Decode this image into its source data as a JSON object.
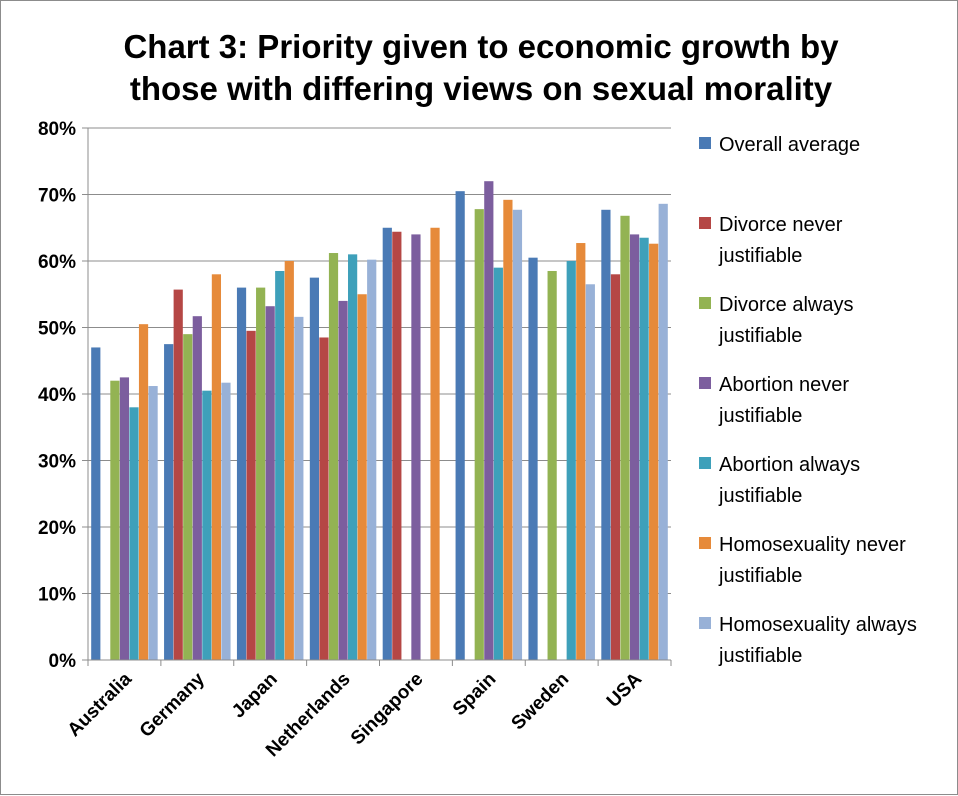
{
  "chart_data": {
    "type": "bar",
    "title_lines": [
      "Chart 3: Priority given to economic growth by",
      "those with differing views on sexual morality"
    ],
    "categories": [
      "Australia",
      "Germany",
      "Japan",
      "Netherlands",
      "Singapore",
      "Spain",
      "Sweden",
      "USA"
    ],
    "ylim": [
      0,
      80
    ],
    "yticks": [
      "0%",
      "10%",
      "20%",
      "30%",
      "40%",
      "50%",
      "60%",
      "70%",
      "80%"
    ],
    "grid": true,
    "legend_position": "right",
    "series": [
      {
        "name": "Overall average",
        "legend_lines": [
          "Overall average"
        ],
        "color": "#4a7ab5",
        "values": [
          47,
          47.5,
          56,
          57.5,
          65,
          70.5,
          60.5,
          67.7
        ]
      },
      {
        "name": "Divorce never justifiable",
        "legend_lines": [
          "Divorce never",
          "justifiable"
        ],
        "color": "#b54745",
        "values": [
          null,
          55.7,
          49.5,
          48.5,
          64.4,
          null,
          null,
          58
        ]
      },
      {
        "name": "Divorce always justifiable",
        "legend_lines": [
          "Divorce always",
          "justifiable"
        ],
        "color": "#93b353",
        "values": [
          42,
          49,
          56,
          61.2,
          null,
          67.8,
          58.5,
          66.8
        ]
      },
      {
        "name": "Abortion never justifiable",
        "legend_lines": [
          "Abortion never",
          "justifiable"
        ],
        "color": "#7c5e9e",
        "values": [
          42.5,
          51.7,
          53.2,
          54,
          64,
          72,
          null,
          64
        ]
      },
      {
        "name": "Abortion always justifiable",
        "legend_lines": [
          "Abortion always",
          "justifiable"
        ],
        "color": "#3ea0ba",
        "values": [
          38,
          40.5,
          58.5,
          61,
          null,
          59,
          60,
          63.5
        ]
      },
      {
        "name": "Homosexuality never justifiable",
        "legend_lines": [
          "Homosexuality never",
          "justifiable"
        ],
        "color": "#e68a3a",
        "values": [
          50.5,
          58,
          60,
          55,
          65,
          69.2,
          62.7,
          62.6
        ]
      },
      {
        "name": "Homosexuality always justifiable",
        "legend_lines": [
          "Homosexuality always",
          "justifiable"
        ],
        "color": "#98b1d7",
        "values": [
          41.2,
          41.7,
          51.6,
          60.2,
          null,
          67.7,
          56.5,
          68.6
        ]
      }
    ]
  }
}
